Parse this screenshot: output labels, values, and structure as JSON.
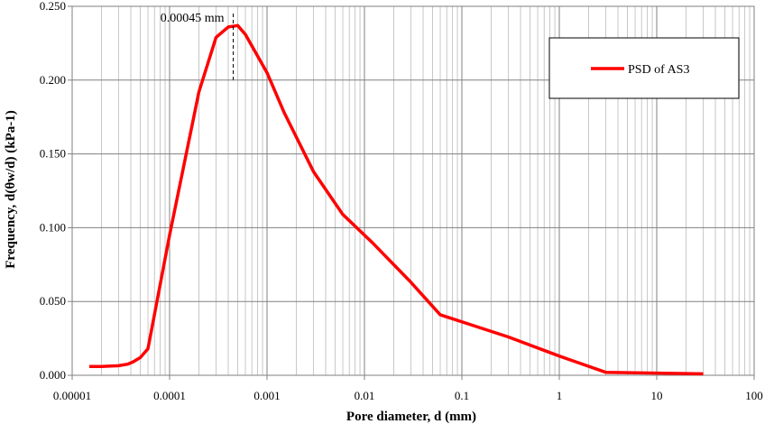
{
  "chart_data": {
    "type": "line",
    "xscale": "log",
    "xlabel": "Pore diameter, d (mm)",
    "ylabel": "Frequency, d(θw/d) (kPa-1)",
    "xlim": [
      1e-05,
      100
    ],
    "ylim": [
      0,
      0.25
    ],
    "x_tick_labels": [
      "0.00001",
      "0.0001",
      "0.001",
      "0.01",
      "0.1",
      "1",
      "10",
      "100"
    ],
    "y_tick_labels": [
      "0.000",
      "0.050",
      "0.100",
      "0.150",
      "0.200",
      "0.250"
    ],
    "y_ticks": [
      0,
      0.05,
      0.1,
      0.15,
      0.2,
      0.25
    ],
    "grid": true,
    "legend_position": "top-right",
    "series": [
      {
        "name": "PSD of AS3",
        "color": "#ff0000",
        "x": [
          1.5e-05,
          2e-05,
          3e-05,
          3.7e-05,
          4.2e-05,
          5e-05,
          6e-05,
          0.0001,
          0.0002,
          0.0003,
          0.0004,
          0.0005,
          0.0006,
          0.001,
          0.0015,
          0.003,
          0.006,
          0.012,
          0.03,
          0.06,
          0.3,
          1,
          3,
          30
        ],
        "y": [
          0.006,
          0.006,
          0.0065,
          0.0075,
          0.009,
          0.012,
          0.018,
          0.095,
          0.192,
          0.229,
          0.236,
          0.237,
          0.231,
          0.205,
          0.178,
          0.138,
          0.109,
          0.09,
          0.063,
          0.041,
          0.026,
          0.013,
          0.002,
          0.001
        ]
      }
    ],
    "annotations": [
      {
        "text": "0.00045 mm",
        "x": 0.00045
      }
    ]
  }
}
